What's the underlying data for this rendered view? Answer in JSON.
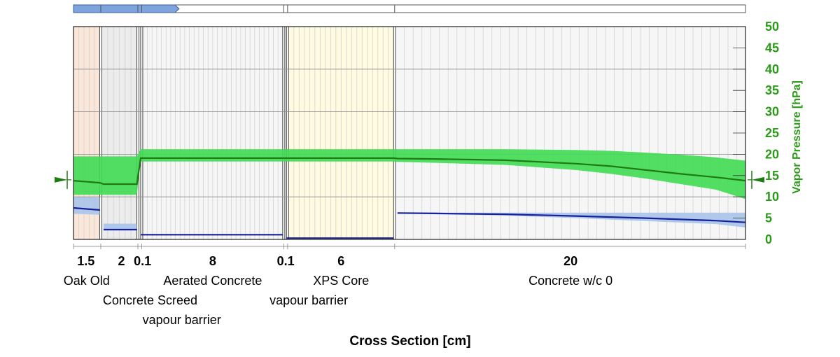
{
  "chart_data": {
    "type": "area",
    "xlabel": "Cross Section [cm]",
    "ylabel": "Vapor Pressure [hPa]",
    "ylim": [
      0,
      50
    ],
    "y_ticks": [
      "0",
      "5",
      "10",
      "15",
      "20",
      "25",
      "30",
      "35",
      "40",
      "45",
      "50"
    ],
    "grid": true,
    "layers": [
      {
        "thickness": "1.5",
        "name": "Oak Old",
        "fill": "#fbe6da",
        "name_row": 0,
        "grid": 5
      },
      {
        "thickness": "2",
        "name": "Concrete Screed",
        "fill": "#ececec",
        "name_row": 1,
        "grid": 6
      },
      {
        "thickness": "0.1",
        "name": "vapour barrier",
        "fill": "#f6f6f6",
        "name_row": 2,
        "grid": 0
      },
      {
        "thickness": "8",
        "name": "Aerated Concrete",
        "fill": "#f6f6f6",
        "name_row": 0,
        "grid": 30
      },
      {
        "thickness": "0.1",
        "name": "vapour barrier",
        "fill": "#f6f6f6",
        "name_row": 1,
        "grid": 0
      },
      {
        "thickness": "6",
        "name": "XPS Core",
        "fill": "#fefbe0",
        "name_row": 0,
        "grid": 20
      },
      {
        "thickness": "20",
        "name": "Concrete w/c 0",
        "fill": "#f6f6f6",
        "name_row": 0,
        "grid": 40
      }
    ],
    "series": [
      {
        "role": "vapor-pressure-mean",
        "color": "#1e7a12",
        "band_color": "#3fdc52",
        "x": [
          0,
          1.5,
          1.6,
          3.5,
          3.6,
          11.6,
          11.7,
          17.7,
          17.8,
          20,
          24,
          28,
          30,
          32,
          34,
          36,
          37.8
        ],
        "y": [
          13.8,
          13.3,
          13.0,
          13.0,
          19.1,
          19.1,
          19.1,
          19.1,
          19.0,
          18.9,
          18.6,
          17.8,
          17.2,
          16.3,
          15.4,
          14.6,
          13.8
        ],
        "band_low": [
          10.5,
          10.5,
          10.5,
          10.5,
          18.3,
          18.3,
          18.3,
          18.3,
          18.2,
          18.0,
          17.5,
          16.3,
          15.4,
          14.3,
          13.0,
          11.7,
          9.5
        ],
        "band_high": [
          19.5,
          19.5,
          19.5,
          19.5,
          21.2,
          21.2,
          21.2,
          21.2,
          21.2,
          21.2,
          21.2,
          21.0,
          20.8,
          20.4,
          19.9,
          19.3,
          18.5
        ]
      },
      {
        "role": "saturation-mean",
        "color": "#16209a",
        "band_color": "#a9c4ea",
        "segments": [
          {
            "x": [
              0,
              1.5
            ],
            "y": [
              7.4,
              6.9
            ],
            "band_low": [
              6.0,
              5.8
            ],
            "band_high": [
              10.0,
              9.8
            ]
          },
          {
            "x": [
              1.6,
              3.5
            ],
            "y": [
              2.3,
              2.3
            ],
            "band_low": [
              2.1,
              2.1
            ],
            "band_high": [
              3.7,
              3.7
            ]
          },
          {
            "x": [
              3.6,
              11.6
            ],
            "y": [
              1.1,
              1.1
            ],
            "band_low": [
              1.0,
              1.0
            ],
            "band_high": [
              1.2,
              1.2
            ]
          },
          {
            "x": [
              11.7,
              17.7
            ],
            "y": [
              0.3,
              0.3
            ],
            "band_low": [
              0.25,
              0.25
            ],
            "band_high": [
              0.4,
              0.4
            ]
          },
          {
            "x": [
              17.8,
              20,
              24,
              28,
              32,
              36,
              37.8
            ],
            "y": [
              6.2,
              6.1,
              5.9,
              5.5,
              5.0,
              4.4,
              4.0
            ],
            "band_low": [
              6.1,
              5.9,
              5.6,
              5.0,
              4.3,
              3.6,
              2.8
            ],
            "band_high": [
              6.3,
              6.3,
              6.3,
              6.3,
              6.3,
              6.3,
              6.3
            ]
          }
        ]
      }
    ],
    "boundary_left": 14,
    "boundary_right": 14,
    "progress_bar": {
      "filled_to_x": 5.6,
      "color": "#7fa3dc"
    }
  }
}
